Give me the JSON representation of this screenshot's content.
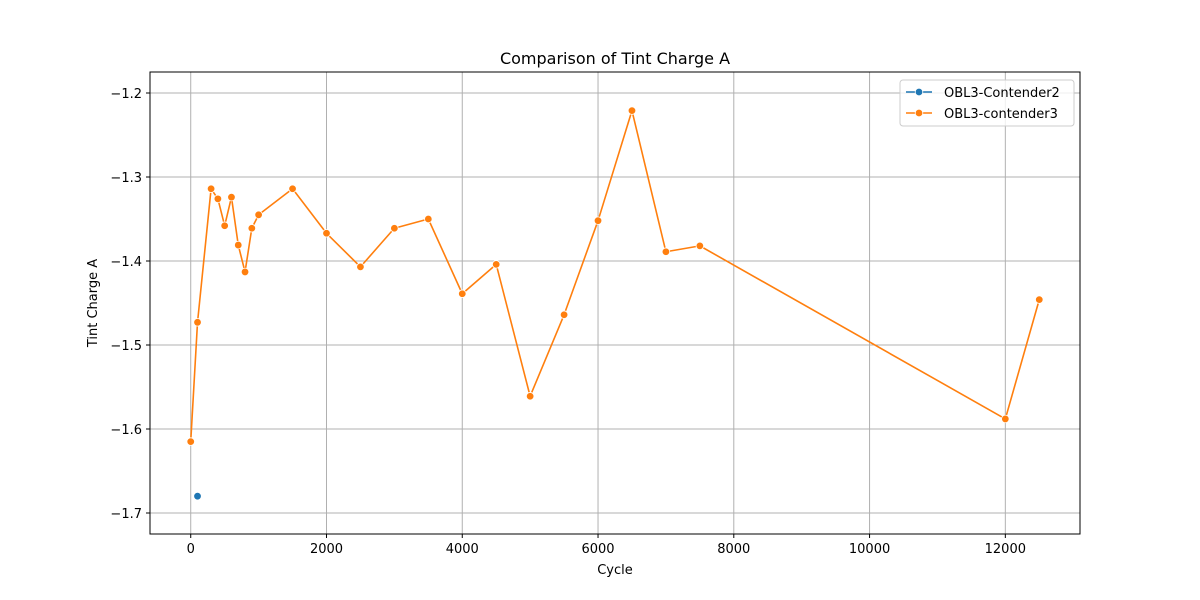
{
  "chart_data": {
    "type": "line",
    "title": "Comparison of Tint Charge A",
    "xlabel": "Cycle",
    "ylabel": "Tint Charge A",
    "xlim": [
      -600,
      13100
    ],
    "ylim": [
      -1.725,
      -1.175
    ],
    "xticks": [
      0,
      2000,
      4000,
      6000,
      8000,
      10000,
      12000
    ],
    "yticks": [
      -1.7,
      -1.6,
      -1.5,
      -1.4,
      -1.3,
      -1.2
    ],
    "xtick_labels": [
      "0",
      "2000",
      "4000",
      "6000",
      "8000",
      "10000",
      "12000"
    ],
    "ytick_labels": [
      "−1.7",
      "−1.6",
      "−1.5",
      "−1.4",
      "−1.3",
      "−1.2"
    ],
    "grid": true,
    "legend_position": "top-right",
    "series": [
      {
        "name": "OBL3-Contender2",
        "color": "#1f77b4",
        "x": [
          100
        ],
        "y": [
          -1.68
        ]
      },
      {
        "name": "OBL3-contender3",
        "color": "#ff7f0e",
        "x": [
          0,
          100,
          300,
          400,
          500,
          600,
          700,
          800,
          900,
          1000,
          1500,
          2000,
          2500,
          3000,
          3500,
          4000,
          4500,
          5000,
          5500,
          6000,
          6500,
          7000,
          7500,
          12000,
          12500
        ],
        "y": [
          -1.615,
          -1.473,
          -1.314,
          -1.326,
          -1.358,
          -1.324,
          -1.381,
          -1.413,
          -1.361,
          -1.345,
          -1.314,
          -1.367,
          -1.407,
          -1.361,
          -1.35,
          -1.439,
          -1.404,
          -1.561,
          -1.464,
          -1.352,
          -1.221,
          -1.389,
          -1.382,
          -1.588,
          -1.446
        ]
      }
    ]
  }
}
